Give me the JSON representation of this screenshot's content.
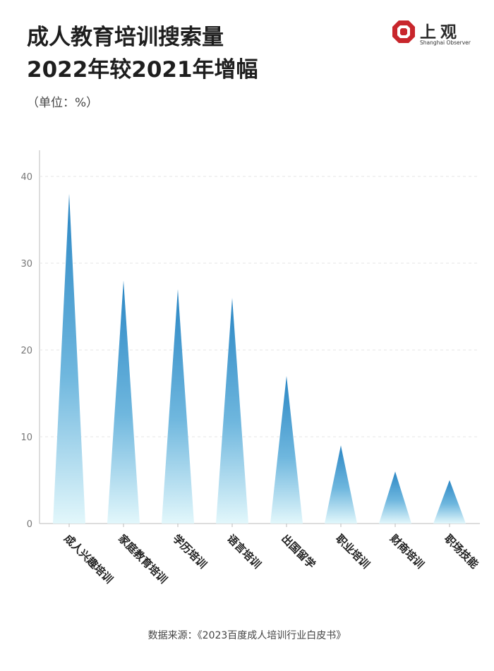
{
  "header": {
    "title_line1": "成人教育培训搜索量",
    "title_line2": "2022年较2021年增幅",
    "unit": "（单位：%）"
  },
  "logo": {
    "name_cn": "上观",
    "name_en": "Shanghai Observer",
    "brand_color": "#c8262c"
  },
  "source": "数据来源：《2023百度成人培训行业白皮书》",
  "chart_data": {
    "type": "bar",
    "mark_shape": "triangle",
    "categories": [
      "成人兴趣培训",
      "家庭教育培训",
      "学历培训",
      "语言培训",
      "出国留学",
      "职业培训",
      "财商培训",
      "职场技能"
    ],
    "values": [
      38,
      28,
      27,
      26,
      17,
      9,
      6,
      5
    ],
    "yticks": [
      0,
      10,
      20,
      30,
      40
    ],
    "ylim": [
      0,
      42
    ],
    "grid": true,
    "gradient_top": "#2a86c4",
    "gradient_bottom": "#e2f7fb"
  }
}
